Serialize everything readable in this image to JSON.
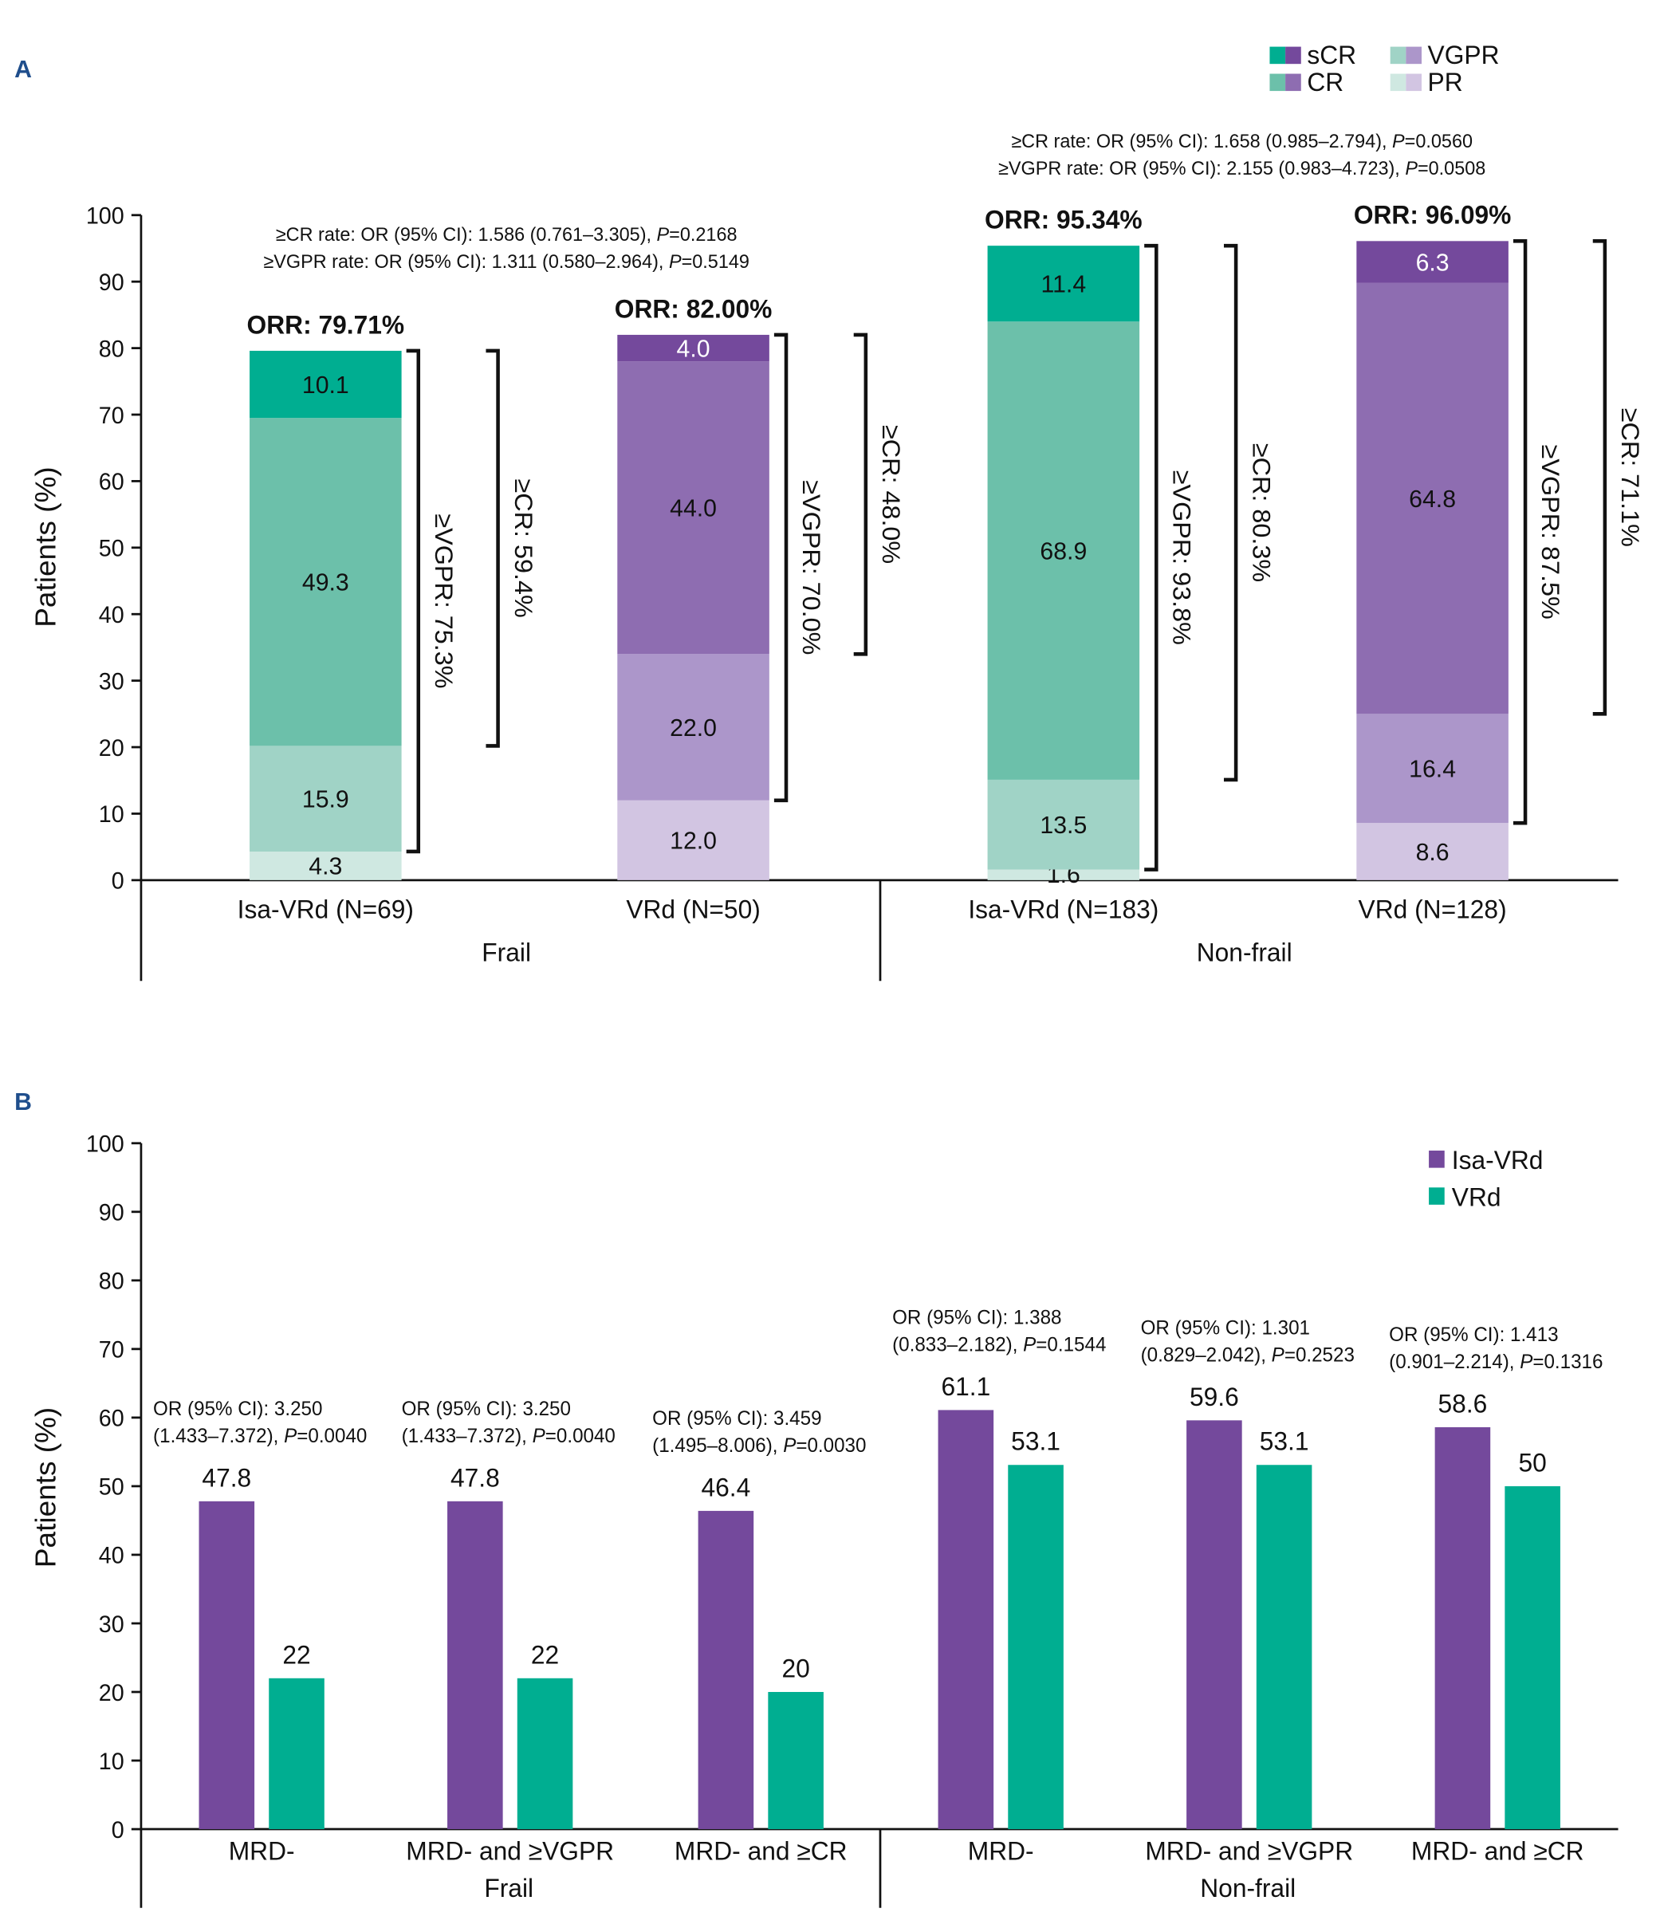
{
  "colors": {
    "isa_sCR": "#00ae91",
    "isa_CR": "#6cc0aa",
    "isa_VGPR": "#a0d3c6",
    "isa_PR": "#cfe8e1",
    "vrd_sCR": "#74499c",
    "vrd_CR": "#8e6db1",
    "vrd_VGPR": "#ac96ca",
    "vrd_PR": "#d2c5e2",
    "panelLabel": "#1f4e8c",
    "b_isa": "#74499c",
    "b_vrd": "#00ae91"
  },
  "chart_data": [
    {
      "panel": "A",
      "type": "bar",
      "stacked": true,
      "ylabel": "Patients (%)",
      "ylim": [
        0,
        100
      ],
      "yticks": [
        0,
        10,
        20,
        30,
        40,
        50,
        60,
        70,
        80,
        90,
        100
      ],
      "legend": {
        "position": "top-right",
        "entries": [
          "sCR",
          "CR",
          "VGPR",
          "PR"
        ]
      },
      "groups": [
        {
          "label": "Frail",
          "annotation": [
            "≥CR rate: OR (95% CI): 1.586 (0.761–3.305), P=0.2168",
            "≥VGPR rate: OR (95% CI): 1.311 (0.580–2.964), P=0.5149"
          ],
          "bars": [
            {
              "label": "Isa-VRd (N=69)",
              "arm": "isa",
              "orr": "ORR: 79.71%",
              "segments": [
                {
                  "name": "PR",
                  "value": 4.3,
                  "label": "4.3"
                },
                {
                  "name": "VGPR",
                  "value": 15.9,
                  "label": "15.9"
                },
                {
                  "name": "CR",
                  "value": 49.3,
                  "label": "49.3"
                },
                {
                  "name": "sCR",
                  "value": 10.1,
                  "label": "10.1"
                }
              ],
              "brackets": [
                {
                  "label": "≥VGPR: 75.3%",
                  "from": 4.3,
                  "to": 79.6
                },
                {
                  "label": "≥CR: 59.4%",
                  "from": 20.2,
                  "to": 79.6
                }
              ]
            },
            {
              "label": "VRd (N=50)",
              "arm": "vrd",
              "orr": "ORR: 82.00%",
              "segments": [
                {
                  "name": "PR",
                  "value": 12.0,
                  "label": "12.0"
                },
                {
                  "name": "VGPR",
                  "value": 22.0,
                  "label": "22.0"
                },
                {
                  "name": "CR",
                  "value": 44.0,
                  "label": "44.0"
                },
                {
                  "name": "sCR",
                  "value": 4.0,
                  "label": "4.0"
                }
              ],
              "brackets": [
                {
                  "label": "≥VGPR: 70.0%",
                  "from": 12.0,
                  "to": 82.0
                },
                {
                  "label": "≥CR: 48.0%",
                  "from": 34.0,
                  "to": 82.0
                }
              ]
            }
          ]
        },
        {
          "label": "Non-frail",
          "annotation": [
            "≥CR rate: OR (95% CI): 1.658 (0.985–2.794), P=0.0560",
            "≥VGPR rate: OR (95% CI): 2.155 (0.983–4.723), P=0.0508"
          ],
          "bars": [
            {
              "label": "Isa-VRd (N=183)",
              "arm": "isa",
              "orr": "ORR: 95.34%",
              "segments": [
                {
                  "name": "PR",
                  "value": 1.6,
                  "label": "1.6"
                },
                {
                  "name": "VGPR",
                  "value": 13.5,
                  "label": "13.5"
                },
                {
                  "name": "CR",
                  "value": 68.9,
                  "label": "68.9"
                },
                {
                  "name": "sCR",
                  "value": 11.4,
                  "label": "11.4"
                }
              ],
              "brackets": [
                {
                  "label": "≥VGPR: 93.8%",
                  "from": 1.6,
                  "to": 95.4
                },
                {
                  "label": "≥CR: 80.3%",
                  "from": 15.1,
                  "to": 95.4
                }
              ]
            },
            {
              "label": "VRd (N=128)",
              "arm": "vrd",
              "orr": "ORR: 96.09%",
              "segments": [
                {
                  "name": "PR",
                  "value": 8.6,
                  "label": "8.6"
                },
                {
                  "name": "VGPR",
                  "value": 16.4,
                  "label": "16.4"
                },
                {
                  "name": "CR",
                  "value": 64.8,
                  "label": "64.8"
                },
                {
                  "name": "sCR",
                  "value": 6.3,
                  "label": "6.3"
                }
              ],
              "brackets": [
                {
                  "label": "≥VGPR: 87.5%",
                  "from": 8.6,
                  "to": 96.1
                },
                {
                  "label": "≥CR: 71.1%",
                  "from": 25.0,
                  "to": 96.1
                }
              ]
            }
          ]
        }
      ]
    },
    {
      "panel": "B",
      "type": "bar",
      "stacked": false,
      "ylabel": "Patients (%)",
      "ylim": [
        0,
        100
      ],
      "yticks": [
        0,
        10,
        20,
        30,
        40,
        50,
        60,
        70,
        80,
        90,
        100
      ],
      "legend": {
        "position": "top-right",
        "entries": [
          "Isa-VRd",
          "VRd"
        ]
      },
      "series": [
        {
          "name": "Isa-VRd",
          "values": [
            47.8,
            47.8,
            46.4,
            61.1,
            59.6,
            58.6
          ],
          "labels": [
            "47.8",
            "47.8",
            "46.4",
            "61.1",
            "59.6",
            "58.6"
          ]
        },
        {
          "name": "VRd",
          "values": [
            22,
            22,
            20,
            53.1,
            53.1,
            50
          ],
          "labels": [
            "22",
            "22",
            "20",
            "53.1",
            "53.1",
            "50"
          ]
        }
      ],
      "categories": [
        "MRD-",
        "MRD- and ≥VGPR",
        "MRD- and ≥CR",
        "MRD-",
        "MRD- and ≥VGPR",
        "MRD- and ≥CR"
      ],
      "groups": [
        {
          "label": "Frail",
          "categories": [
            0,
            1,
            2
          ]
        },
        {
          "label": "Non-frail",
          "categories": [
            3,
            4,
            5
          ]
        }
      ],
      "annotations": [
        [
          "OR (95% CI): 3.250",
          "(1.433–7.372), P=0.0040"
        ],
        [
          "OR (95% CI): 3.250",
          "(1.433–7.372), P=0.0040"
        ],
        [
          "OR (95% CI): 3.459",
          "(1.495–8.006), P=0.0030"
        ],
        [
          "OR (95% CI): 1.388",
          "(0.833–2.182), P=0.1544"
        ],
        [
          "OR (95% CI): 1.301",
          "(0.829–2.042), P=0.2523"
        ],
        [
          "OR (95% CI): 1.413",
          "(0.901–2.214), P=0.1316"
        ]
      ]
    }
  ],
  "panelA": {
    "label": "A"
  },
  "panelB": {
    "label": "B"
  }
}
